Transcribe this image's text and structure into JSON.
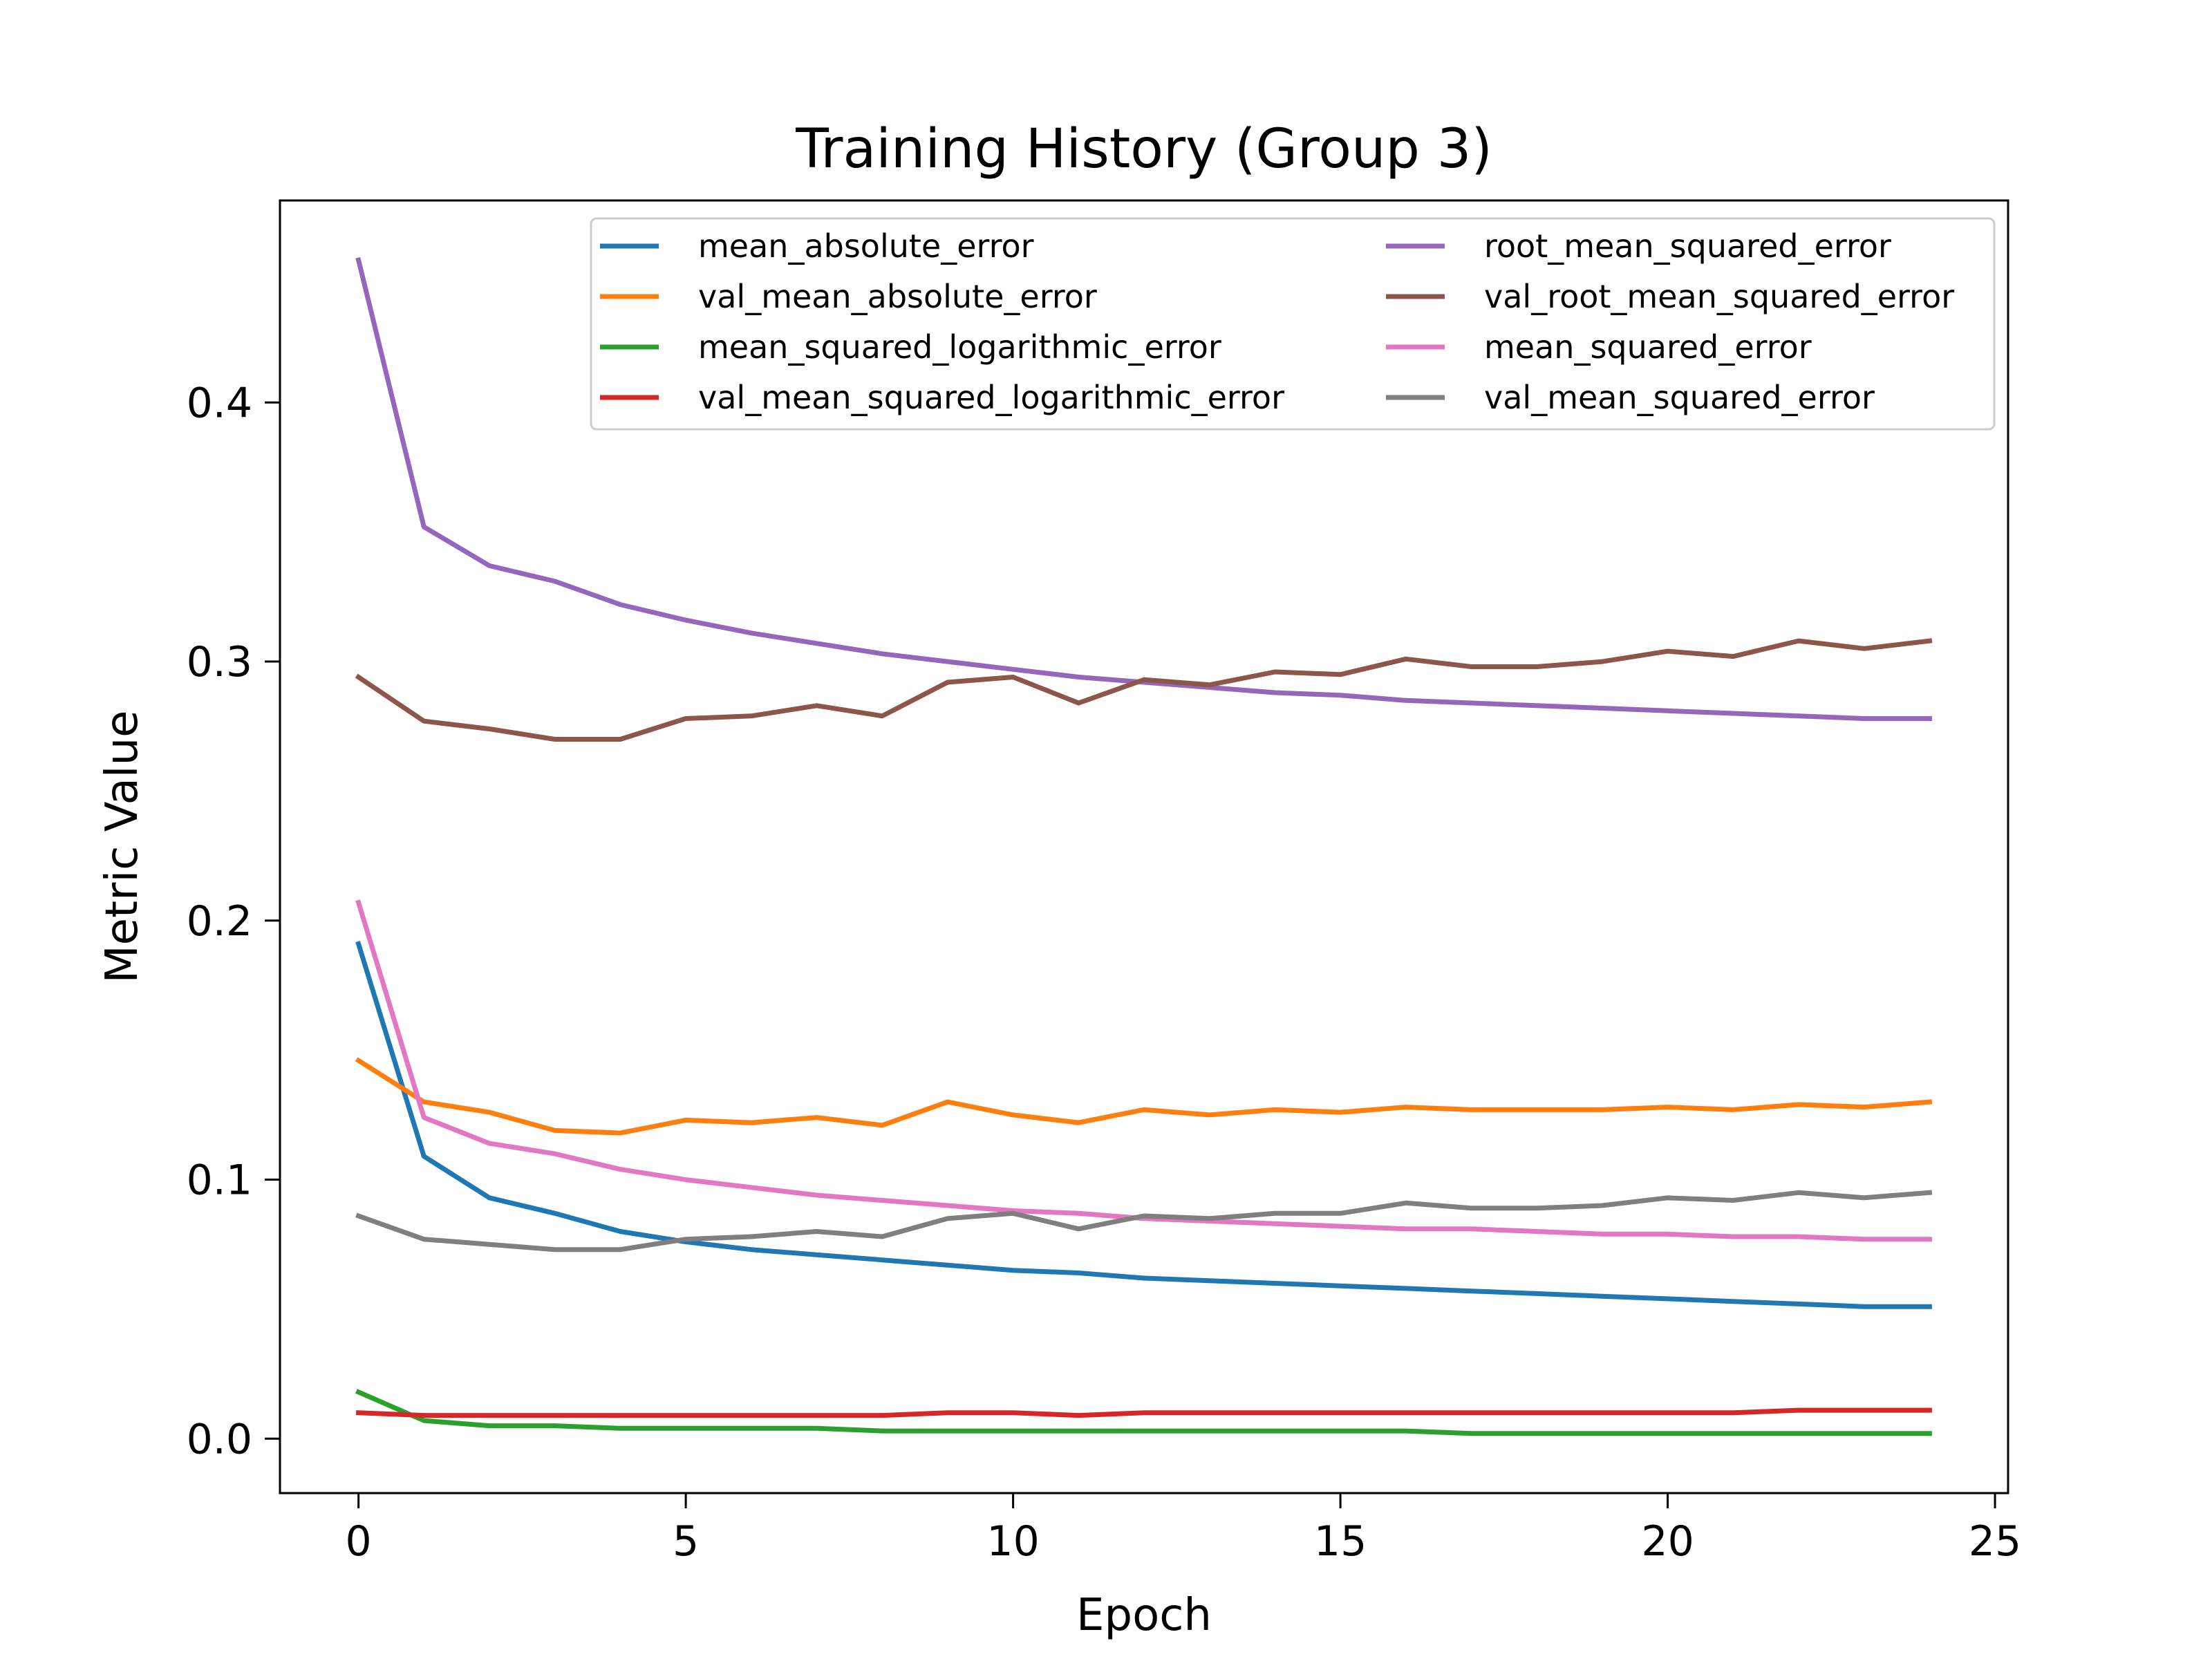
{
  "chart_data": {
    "type": "line",
    "title": "Training History (Group 3)",
    "xlabel": "Epoch",
    "ylabel": "Metric Value",
    "xlim": [
      -1.2,
      25.2
    ],
    "ylim": [
      -0.021,
      0.478
    ],
    "xticks": [
      0,
      5,
      10,
      15,
      20,
      25
    ],
    "xtick_labels": [
      "0",
      "5",
      "10",
      "15",
      "20",
      "25"
    ],
    "yticks": [
      0.0,
      0.1,
      0.2,
      0.3,
      0.4
    ],
    "ytick_labels": [
      "0.0",
      "0.1",
      "0.2",
      "0.3",
      "0.4"
    ],
    "grid": false,
    "legend_position": "upper-right",
    "legend_columns": 2,
    "x": [
      0,
      1,
      2,
      3,
      4,
      5,
      6,
      7,
      8,
      9,
      10,
      11,
      12,
      13,
      14,
      15,
      16,
      17,
      18,
      19,
      20,
      21,
      22,
      23,
      24
    ],
    "series": [
      {
        "name": "mean_absolute_error",
        "color": "#1f77b4",
        "values": [
          0.191,
          0.109,
          0.093,
          0.087,
          0.08,
          0.076,
          0.073,
          0.071,
          0.069,
          0.067,
          0.065,
          0.064,
          0.062,
          0.061,
          0.06,
          0.059,
          0.058,
          0.057,
          0.056,
          0.055,
          0.054,
          0.053,
          0.052,
          0.051,
          0.051
        ]
      },
      {
        "name": "val_mean_absolute_error",
        "color": "#ff7f0e",
        "values": [
          0.146,
          0.13,
          0.126,
          0.119,
          0.118,
          0.123,
          0.122,
          0.124,
          0.121,
          0.13,
          0.125,
          0.122,
          0.127,
          0.125,
          0.127,
          0.126,
          0.128,
          0.127,
          0.127,
          0.127,
          0.128,
          0.127,
          0.129,
          0.128,
          0.13
        ]
      },
      {
        "name": "mean_squared_logarithmic_error",
        "color": "#2ca02c",
        "values": [
          0.018,
          0.007,
          0.005,
          0.005,
          0.004,
          0.004,
          0.004,
          0.004,
          0.003,
          0.003,
          0.003,
          0.003,
          0.003,
          0.003,
          0.003,
          0.003,
          0.003,
          0.002,
          0.002,
          0.002,
          0.002,
          0.002,
          0.002,
          0.002,
          0.002
        ]
      },
      {
        "name": "val_mean_squared_logarithmic_error",
        "color": "#d62728",
        "values": [
          0.01,
          0.009,
          0.009,
          0.009,
          0.009,
          0.009,
          0.009,
          0.009,
          0.009,
          0.01,
          0.01,
          0.009,
          0.01,
          0.01,
          0.01,
          0.01,
          0.01,
          0.01,
          0.01,
          0.01,
          0.01,
          0.01,
          0.011,
          0.011,
          0.011
        ]
      },
      {
        "name": "root_mean_squared_error",
        "color": "#9467bd",
        "values": [
          0.455,
          0.352,
          0.337,
          0.331,
          0.322,
          0.316,
          0.311,
          0.307,
          0.303,
          0.3,
          0.297,
          0.294,
          0.292,
          0.29,
          0.288,
          0.287,
          0.285,
          0.284,
          0.283,
          0.282,
          0.281,
          0.28,
          0.279,
          0.278,
          0.278
        ]
      },
      {
        "name": "val_root_mean_squared_error",
        "color": "#8c564b",
        "values": [
          0.294,
          0.277,
          0.274,
          0.27,
          0.27,
          0.278,
          0.279,
          0.283,
          0.279,
          0.292,
          0.294,
          0.284,
          0.293,
          0.291,
          0.296,
          0.295,
          0.301,
          0.298,
          0.298,
          0.3,
          0.304,
          0.302,
          0.308,
          0.305,
          0.308
        ]
      },
      {
        "name": "mean_squared_error",
        "color": "#e377c2",
        "values": [
          0.207,
          0.124,
          0.114,
          0.11,
          0.104,
          0.1,
          0.097,
          0.094,
          0.092,
          0.09,
          0.088,
          0.087,
          0.085,
          0.084,
          0.083,
          0.082,
          0.081,
          0.081,
          0.08,
          0.079,
          0.079,
          0.078,
          0.078,
          0.077,
          0.077
        ]
      },
      {
        "name": "val_mean_squared_error",
        "color": "#7f7f7f",
        "values": [
          0.086,
          0.077,
          0.075,
          0.073,
          0.073,
          0.077,
          0.078,
          0.08,
          0.078,
          0.085,
          0.087,
          0.081,
          0.086,
          0.085,
          0.087,
          0.087,
          0.091,
          0.089,
          0.089,
          0.09,
          0.093,
          0.092,
          0.095,
          0.093,
          0.095
        ]
      }
    ]
  }
}
